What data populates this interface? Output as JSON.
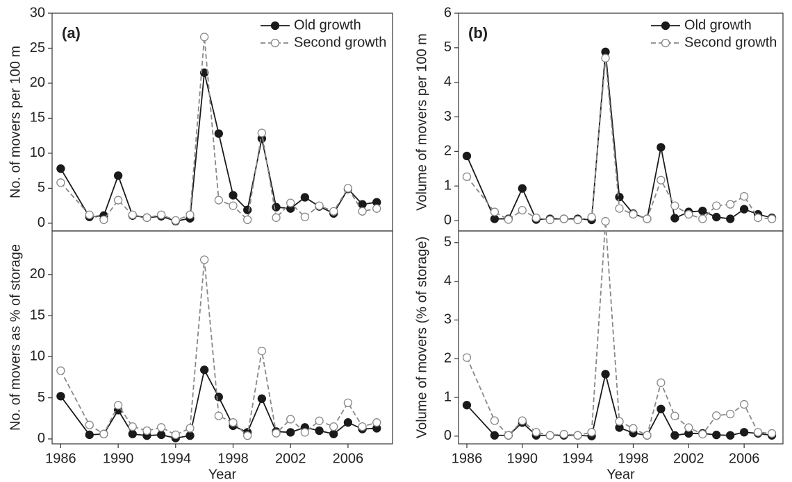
{
  "chart_data": [
    {
      "type": "line",
      "label": "(a)",
      "ylabel": "No. of movers per 100 m",
      "legend": "upper right",
      "x": [
        1986,
        1988,
        1989,
        1990,
        1991,
        1992,
        1993,
        1994,
        1995,
        1996,
        1997,
        1998,
        1999,
        2000,
        2001,
        2002,
        2003,
        2004,
        2005,
        2006,
        2007,
        2008
      ],
      "xlim": [
        1985.4,
        2009.1
      ],
      "ylim": [
        -1.1,
        30
      ],
      "yticks": [
        0,
        5,
        10,
        15,
        20,
        25,
        30
      ],
      "series": [
        {
          "name": "Old growth",
          "color": "#1a1a1a",
          "linestyle": "solid",
          "marker_face": "#1a1a1a",
          "values": [
            7.8,
            0.9,
            1.1,
            6.8,
            1.1,
            0.8,
            1.0,
            0.3,
            0.7,
            21.5,
            12.8,
            4.0,
            1.9,
            12.1,
            2.3,
            2.1,
            3.7,
            2.4,
            1.4,
            4.9,
            2.7,
            3.0
          ]
        },
        {
          "name": "Second growth",
          "color": "#888888",
          "linestyle": "dashed",
          "marker_face": "#ffffff",
          "values": [
            5.8,
            1.2,
            0.5,
            3.3,
            1.2,
            0.8,
            1.2,
            0.4,
            1.2,
            26.6,
            3.3,
            2.5,
            0.5,
            12.9,
            0.8,
            2.9,
            0.9,
            2.5,
            1.7,
            5.0,
            1.7,
            2.1
          ]
        }
      ]
    },
    {
      "type": "line",
      "ylabel": "No. of movers as % of storage",
      "xlabel": "Year",
      "x": [
        1986,
        1988,
        1989,
        1990,
        1991,
        1992,
        1993,
        1994,
        1995,
        1996,
        1997,
        1998,
        1999,
        2000,
        2001,
        2002,
        2003,
        2004,
        2005,
        2006,
        2007,
        2008
      ],
      "xlim": [
        1985.4,
        2009.1
      ],
      "xticks": [
        1986,
        1990,
        1994,
        1998,
        2002,
        2006
      ],
      "ylim": [
        -0.6,
        25.3
      ],
      "yticks": [
        0,
        5,
        10,
        15,
        20
      ],
      "series": [
        {
          "color": "#1a1a1a",
          "linestyle": "solid",
          "marker_face": "#1a1a1a",
          "values": [
            5.2,
            0.5,
            0.6,
            3.5,
            0.6,
            0.4,
            0.5,
            0.1,
            0.4,
            8.4,
            5.1,
            1.6,
            0.8,
            4.9,
            0.9,
            0.8,
            1.4,
            1.0,
            0.6,
            2.0,
            1.2,
            1.3
          ]
        },
        {
          "color": "#888888",
          "linestyle": "dashed",
          "marker_face": "#ffffff",
          "values": [
            8.3,
            1.7,
            0.6,
            4.1,
            1.5,
            1.0,
            1.4,
            0.5,
            1.3,
            21.8,
            2.8,
            2.0,
            0.4,
            10.7,
            0.7,
            2.4,
            0.8,
            2.2,
            1.5,
            4.4,
            1.5,
            2.0
          ]
        }
      ]
    },
    {
      "type": "line",
      "label": "(b)",
      "ylabel": "Volume of movers per 100 m",
      "legend": "upper right",
      "x": [
        1986,
        1988,
        1989,
        1990,
        1991,
        1992,
        1993,
        1994,
        1995,
        1996,
        1997,
        1998,
        1999,
        2000,
        2001,
        2002,
        2003,
        2004,
        2005,
        2006,
        2007,
        2008
      ],
      "xlim": [
        1985.4,
        2008.8
      ],
      "ylim": [
        -0.3,
        6
      ],
      "yticks": [
        0,
        1,
        2,
        3,
        4,
        5,
        6
      ],
      "series": [
        {
          "name": "Old growth",
          "color": "#1a1a1a",
          "linestyle": "solid",
          "marker_face": "#1a1a1a",
          "values": [
            1.87,
            0.05,
            0.05,
            0.93,
            0.03,
            0.05,
            0.05,
            0.05,
            0.02,
            4.88,
            0.68,
            0.2,
            0.05,
            2.12,
            0.07,
            0.25,
            0.28,
            0.1,
            0.05,
            0.33,
            0.18,
            0.08
          ]
        },
        {
          "name": "Second growth",
          "color": "#888888",
          "linestyle": "dashed",
          "marker_face": "#ffffff",
          "values": [
            1.27,
            0.25,
            0.03,
            0.3,
            0.08,
            0.02,
            0.05,
            0.02,
            0.1,
            4.7,
            0.35,
            0.18,
            0.05,
            1.17,
            0.43,
            0.18,
            0.05,
            0.43,
            0.47,
            0.7,
            0.08,
            0.05
          ]
        }
      ]
    },
    {
      "type": "line",
      "ylabel": "Volume of movers (% of storage)",
      "xlabel": "Year",
      "x": [
        1986,
        1988,
        1989,
        1990,
        1991,
        1992,
        1993,
        1994,
        1995,
        1996,
        1997,
        1998,
        1999,
        2000,
        2001,
        2002,
        2003,
        2004,
        2005,
        2006,
        2007,
        2008
      ],
      "xlim": [
        1985.4,
        2008.8
      ],
      "xticks": [
        1986,
        1990,
        1994,
        1998,
        2002,
        2006
      ],
      "ylim": [
        -0.2,
        5.3
      ],
      "yticks": [
        0,
        1,
        2,
        3,
        4,
        5
      ],
      "series": [
        {
          "color": "#1a1a1a",
          "linestyle": "solid",
          "marker_face": "#1a1a1a",
          "values": [
            0.8,
            0.02,
            0.02,
            0.35,
            0.02,
            0.02,
            0.02,
            0.02,
            0.0,
            1.6,
            0.22,
            0.08,
            0.02,
            0.7,
            0.02,
            0.07,
            0.07,
            0.03,
            0.02,
            0.1,
            0.07,
            0.02
          ]
        },
        {
          "color": "#888888",
          "linestyle": "dashed",
          "marker_face": "#ffffff",
          "values": [
            2.03,
            0.4,
            0.02,
            0.4,
            0.1,
            0.02,
            0.05,
            0.02,
            0.1,
            5.55,
            0.38,
            0.2,
            0.02,
            1.38,
            0.52,
            0.22,
            0.05,
            0.53,
            0.57,
            0.82,
            0.1,
            0.07
          ]
        }
      ]
    }
  ]
}
